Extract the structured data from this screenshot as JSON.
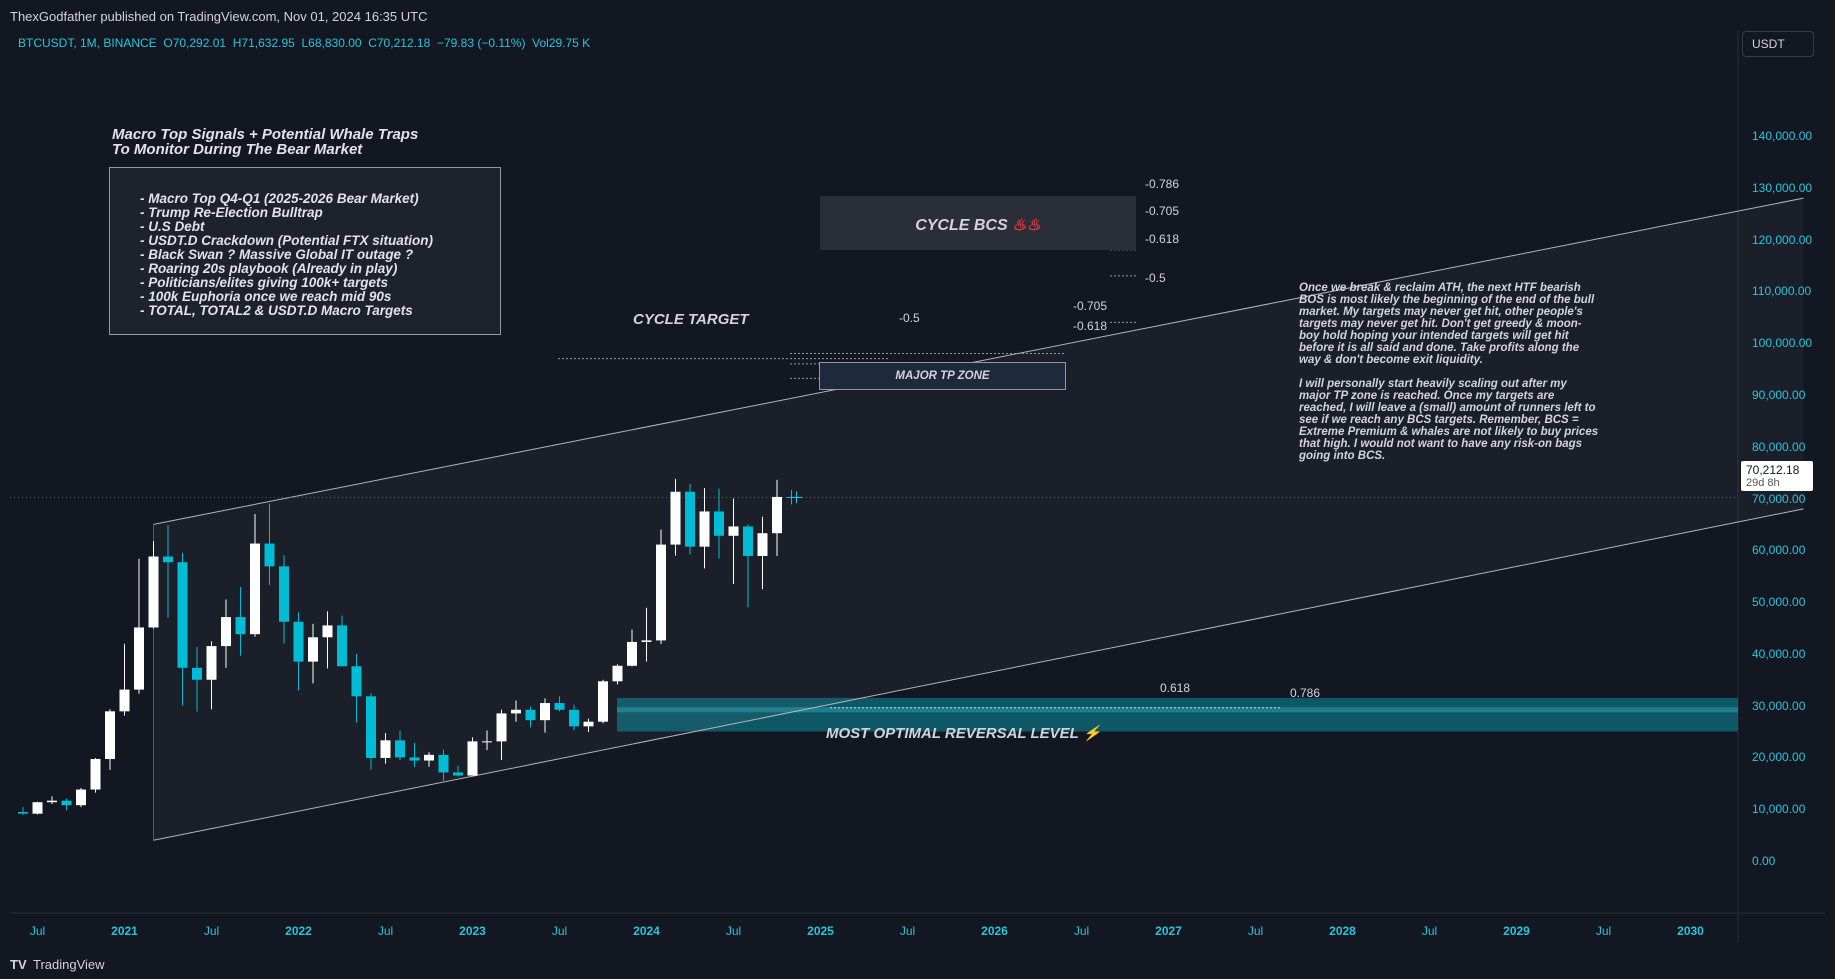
{
  "header": {
    "published": "ThexGodfather published on TradingView.com, Nov 01, 2024 16:35 UTC"
  },
  "legend": {
    "symbol": "BTCUSDT, 1M, BINANCE",
    "open": "O70,292.01",
    "high": "H71,632.95",
    "low": "L68,830.00",
    "close": "C70,212.18",
    "change": "−79.83 (−0.11%)",
    "volume": "Vol29.75 K"
  },
  "currency_button": "USDT",
  "last_price": {
    "price": "70,212.18",
    "countdown": "29d 8h"
  },
  "annotations": {
    "signals_title_1": "Macro Top Signals + Potential Whale Traps",
    "signals_title_2": "To Monitor During The Bear Market",
    "signals": [
      "- Macro Top Q4-Q1 (2025-2026 Bear Market)",
      "- Trump Re-Election Bulltrap",
      "- U.S Debt",
      "- USDT.D Crackdown (Potential FTX situation)",
      "- Black Swan ? Massive Global IT outage ?",
      "- Roaring 20s playbook (Already in play)",
      "- Politicians/elites giving 100k+ targets",
      "- 100k Euphoria once we reach mid 90s",
      "- TOTAL, TOTAL2 & USDT.D Macro Targets"
    ],
    "cycle_bcs": "CYCLE BCS",
    "cycle_bcs_emoji": "♨♨",
    "cycle_target": "CYCLE TARGET",
    "major_tp_zone": "MAJOR TP ZONE",
    "optimal_reversal": "MOST OPTIMAL REVERSAL LEVEL ⚡",
    "notes_p1": "Once we break & reclaim ATH, the next HTF bearish BOS is most likely the beginning of the end of the bull market. My targets may never get hit, other people's targets may never get hit. Don't get greedy & moon-boy hold hoping your intended targets will get hit before it is all said and done. Take profits along the way & don't become exit liquidity.",
    "notes_p2": "I will personally start heavily scaling out after my major TP zone is reached. Once my targets are reached, I will leave a (small) amount of runners left to see if we reach any BCS targets. Remember, BCS = Extreme Premium & whales are not likely to buy prices that high. I would not want to have any risk-on bags going into BCS.",
    "fib_bcs": [
      "-0.786",
      "-0.705",
      "-0.618",
      "-0.5"
    ],
    "fib_target": [
      "-0.5",
      "-0.705",
      "-0.618"
    ],
    "fib_reversal": [
      "0.618",
      "0.786"
    ]
  },
  "y_axis": [
    "140,000.00",
    "130,000.00",
    "120,000.00",
    "110,000.00",
    "100,000.00",
    "90,000.00",
    "80,000.00",
    "70,000.00",
    "60,000.00",
    "50,000.00",
    "40,000.00",
    "30,000.00",
    "20,000.00",
    "10,000.00",
    "0.00"
  ],
  "x_axis": [
    {
      "label": "Jul",
      "year": false
    },
    {
      "label": "2021",
      "year": true
    },
    {
      "label": "Jul",
      "year": false
    },
    {
      "label": "2022",
      "year": true
    },
    {
      "label": "Jul",
      "year": false
    },
    {
      "label": "2023",
      "year": true
    },
    {
      "label": "Jul",
      "year": false
    },
    {
      "label": "2024",
      "year": true
    },
    {
      "label": "Jul",
      "year": false
    },
    {
      "label": "2025",
      "year": true
    },
    {
      "label": "Jul",
      "year": false
    },
    {
      "label": "2026",
      "year": true
    },
    {
      "label": "Jul",
      "year": false
    },
    {
      "label": "2027",
      "year": true
    },
    {
      "label": "Jul",
      "year": false
    },
    {
      "label": "2028",
      "year": true
    },
    {
      "label": "Jul",
      "year": false
    },
    {
      "label": "2029",
      "year": true
    },
    {
      "label": "Jul",
      "year": false
    },
    {
      "label": "2030",
      "year": true
    }
  ],
  "footer": {
    "brand": "TradingView",
    "logo": "tradingview-logo"
  },
  "colors": {
    "up": "#ffffff",
    "down": "#00bcd4",
    "accent": "#26c6da",
    "zone": "#0e6f7e"
  },
  "chart_data": {
    "type": "candlestick",
    "symbol": "BTCUSDT",
    "interval": "1M",
    "ylim": [
      0,
      140000
    ],
    "candles": [
      {
        "t": "2020-06",
        "o": 9450,
        "h": 10400,
        "l": 8900,
        "c": 9140
      },
      {
        "t": "2020-07",
        "o": 9140,
        "h": 11450,
        "l": 9000,
        "c": 11350
      },
      {
        "t": "2020-08",
        "o": 11350,
        "h": 12470,
        "l": 11000,
        "c": 11650
      },
      {
        "t": "2020-09",
        "o": 11650,
        "h": 12080,
        "l": 9800,
        "c": 10780
      },
      {
        "t": "2020-10",
        "o": 10780,
        "h": 14100,
        "l": 10400,
        "c": 13800
      },
      {
        "t": "2020-11",
        "o": 13800,
        "h": 19900,
        "l": 13200,
        "c": 19700
      },
      {
        "t": "2020-12",
        "o": 19700,
        "h": 29300,
        "l": 17600,
        "c": 28900
      },
      {
        "t": "2021-01",
        "o": 28900,
        "h": 41950,
        "l": 28100,
        "c": 33100
      },
      {
        "t": "2021-02",
        "o": 33100,
        "h": 58350,
        "l": 32300,
        "c": 45100
      },
      {
        "t": "2021-03",
        "o": 45100,
        "h": 61800,
        "l": 44900,
        "c": 58800
      },
      {
        "t": "2021-04",
        "o": 58800,
        "h": 64850,
        "l": 47000,
        "c": 57700
      },
      {
        "t": "2021-05",
        "o": 57700,
        "h": 59500,
        "l": 30000,
        "c": 37300
      },
      {
        "t": "2021-06",
        "o": 37300,
        "h": 41300,
        "l": 28800,
        "c": 35000
      },
      {
        "t": "2021-07",
        "o": 35000,
        "h": 42400,
        "l": 29300,
        "c": 41500
      },
      {
        "t": "2021-08",
        "o": 41500,
        "h": 50500,
        "l": 37300,
        "c": 47100
      },
      {
        "t": "2021-09",
        "o": 47100,
        "h": 52900,
        "l": 39600,
        "c": 43800
      },
      {
        "t": "2021-10",
        "o": 43800,
        "h": 67000,
        "l": 43300,
        "c": 61300
      },
      {
        "t": "2021-11",
        "o": 61300,
        "h": 69000,
        "l": 53300,
        "c": 56900
      },
      {
        "t": "2021-12",
        "o": 56900,
        "h": 59100,
        "l": 42000,
        "c": 46200
      },
      {
        "t": "2022-01",
        "o": 46200,
        "h": 48000,
        "l": 32900,
        "c": 38500
      },
      {
        "t": "2022-02",
        "o": 38500,
        "h": 45800,
        "l": 34300,
        "c": 43200
      },
      {
        "t": "2022-03",
        "o": 43200,
        "h": 48200,
        "l": 37200,
        "c": 45500
      },
      {
        "t": "2022-04",
        "o": 45500,
        "h": 47400,
        "l": 37700,
        "c": 37600
      },
      {
        "t": "2022-05",
        "o": 37600,
        "h": 40000,
        "l": 26700,
        "c": 31800
      },
      {
        "t": "2022-06",
        "o": 31800,
        "h": 32400,
        "l": 17600,
        "c": 19900
      },
      {
        "t": "2022-07",
        "o": 19900,
        "h": 24700,
        "l": 18800,
        "c": 23300
      },
      {
        "t": "2022-08",
        "o": 23300,
        "h": 25200,
        "l": 19500,
        "c": 20000
      },
      {
        "t": "2022-09",
        "o": 20000,
        "h": 22800,
        "l": 18100,
        "c": 19400
      },
      {
        "t": "2022-10",
        "o": 19400,
        "h": 21000,
        "l": 18200,
        "c": 20500
      },
      {
        "t": "2022-11",
        "o": 20500,
        "h": 21500,
        "l": 15500,
        "c": 17100
      },
      {
        "t": "2022-12",
        "o": 17100,
        "h": 18400,
        "l": 16300,
        "c": 16500
      },
      {
        "t": "2023-01",
        "o": 16500,
        "h": 23900,
        "l": 16500,
        "c": 23100
      },
      {
        "t": "2023-02",
        "o": 23100,
        "h": 25200,
        "l": 21400,
        "c": 23100
      },
      {
        "t": "2023-03",
        "o": 23100,
        "h": 29200,
        "l": 19500,
        "c": 28500
      },
      {
        "t": "2023-04",
        "o": 28500,
        "h": 31000,
        "l": 26900,
        "c": 29200
      },
      {
        "t": "2023-05",
        "o": 29200,
        "h": 29800,
        "l": 25800,
        "c": 27200
      },
      {
        "t": "2023-06",
        "o": 27200,
        "h": 31400,
        "l": 24800,
        "c": 30500
      },
      {
        "t": "2023-07",
        "o": 30500,
        "h": 31800,
        "l": 28900,
        "c": 29200
      },
      {
        "t": "2023-08",
        "o": 29200,
        "h": 30200,
        "l": 25200,
        "c": 26000
      },
      {
        "t": "2023-09",
        "o": 26000,
        "h": 27500,
        "l": 24900,
        "c": 26900
      },
      {
        "t": "2023-10",
        "o": 26900,
        "h": 35000,
        "l": 26600,
        "c": 34700
      },
      {
        "t": "2023-11",
        "o": 34700,
        "h": 38000,
        "l": 34100,
        "c": 37700
      },
      {
        "t": "2023-12",
        "o": 37700,
        "h": 44700,
        "l": 37600,
        "c": 42300
      },
      {
        "t": "2024-01",
        "o": 42300,
        "h": 48900,
        "l": 38500,
        "c": 42600
      },
      {
        "t": "2024-02",
        "o": 42600,
        "h": 64000,
        "l": 41900,
        "c": 61100
      },
      {
        "t": "2024-03",
        "o": 61100,
        "h": 73800,
        "l": 59000,
        "c": 71300
      },
      {
        "t": "2024-04",
        "o": 71300,
        "h": 72800,
        "l": 59200,
        "c": 60700
      },
      {
        "t": "2024-05",
        "o": 60700,
        "h": 72000,
        "l": 56500,
        "c": 67500
      },
      {
        "t": "2024-06",
        "o": 67500,
        "h": 71900,
        "l": 58400,
        "c": 62800
      },
      {
        "t": "2024-07",
        "o": 62800,
        "h": 70000,
        "l": 53500,
        "c": 64600
      },
      {
        "t": "2024-08",
        "o": 64600,
        "h": 65000,
        "l": 49000,
        "c": 58900
      },
      {
        "t": "2024-09",
        "o": 58900,
        "h": 66500,
        "l": 52500,
        "c": 63300
      },
      {
        "t": "2024-10",
        "o": 63300,
        "h": 73600,
        "l": 58900,
        "c": 70300
      },
      {
        "t": "2024-11",
        "o": 70292.01,
        "h": 71632.95,
        "l": 68830,
        "c": 70212.18
      }
    ],
    "channel": {
      "upper": [
        {
          "t": "2021-03",
          "v": 65000
        },
        {
          "t": "2030-09",
          "v": 128000
        }
      ],
      "lower": [
        {
          "t": "2021-03",
          "v": 4000
        },
        {
          "t": "2030-09",
          "v": 68000
        }
      ]
    },
    "zones": [
      {
        "name": "CYCLE BCS",
        "from": 109000,
        "to": 119500
      },
      {
        "name": "MAJOR TP ZONE",
        "from": 88000,
        "to": 92500
      },
      {
        "name": "MOST OPTIMAL REVERSAL LEVEL",
        "from": 25000,
        "to": 31500
      }
    ],
    "levels": [
      {
        "label": "-0.786",
        "v": 121000
      },
      {
        "label": "-0.705",
        "v": 118000
      },
      {
        "label": "-0.618",
        "v": 113000
      },
      {
        "label": "-0.5",
        "v": 104000
      },
      {
        "label": "-0.5",
        "v": 98000
      },
      {
        "label": "-0.705",
        "v": 99700
      },
      {
        "label": "-0.618",
        "v": 96000
      },
      {
        "label": "0.618",
        "v": 29700
      },
      {
        "label": "0.786",
        "v": 29100
      }
    ]
  }
}
